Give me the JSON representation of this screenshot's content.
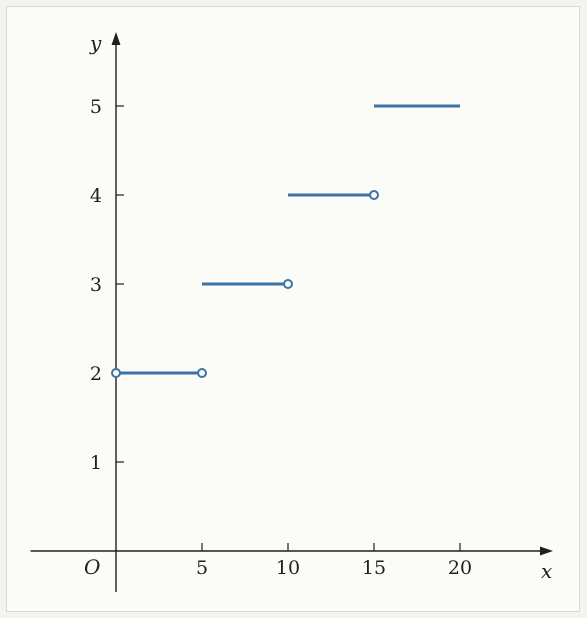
{
  "chart_data": {
    "type": "line",
    "title": "",
    "xlabel": "x",
    "ylabel": "y",
    "origin_label": "O",
    "xlim": [
      -4.5,
      25
    ],
    "ylim": [
      -0.5,
      5.9
    ],
    "x_ticks": [
      5,
      10,
      15,
      20
    ],
    "y_ticks": [
      1,
      2,
      3,
      4,
      5
    ],
    "grid": false,
    "series": [
      {
        "segments": [
          {
            "x": [
              0,
              5
            ],
            "y": 2,
            "left": "closed",
            "right": "open"
          },
          {
            "x": [
              5,
              10
            ],
            "y": 3,
            "left": "closed",
            "right": "open"
          },
          {
            "x": [
              10,
              15
            ],
            "y": 4,
            "left": "closed",
            "right": "open"
          },
          {
            "x": [
              15,
              20
            ],
            "y": 5,
            "left": "closed",
            "right": "closed"
          }
        ]
      }
    ],
    "colors": {
      "step": "#3b72a8",
      "axis": "#1f1f1f",
      "background": "#fbfbf8"
    }
  }
}
